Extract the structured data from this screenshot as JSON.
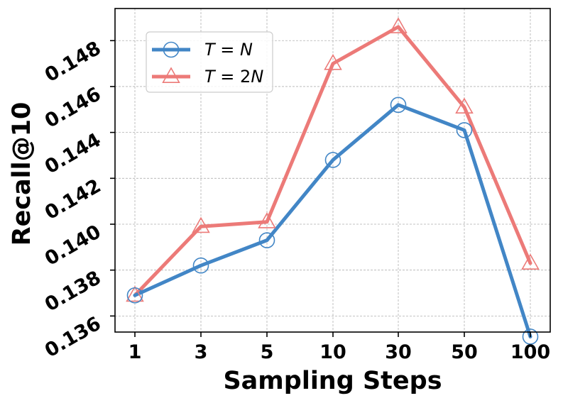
{
  "chart_data": {
    "type": "line",
    "title": "",
    "xlabel": "Sampling Steps",
    "ylabel": "Recall@10",
    "categories": [
      "1",
      "3",
      "5",
      "10",
      "30",
      "50",
      "100"
    ],
    "yticks": [
      "0.136",
      "0.138",
      "0.140",
      "0.142",
      "0.144",
      "0.146",
      "0.148"
    ],
    "ylim": [
      0.1353,
      0.1494
    ],
    "grid": true,
    "legend_position": "top-left",
    "series": [
      {
        "name": "T = N",
        "legend_parts": [
          "T",
          " = ",
          "N"
        ],
        "marker": "circle",
        "color": "#4286c6",
        "values": [
          0.1369,
          0.1382,
          0.1393,
          0.1428,
          0.1452,
          0.1441,
          0.1351
        ]
      },
      {
        "name": "T = 2N",
        "legend_parts": [
          "T",
          " = 2",
          "N"
        ],
        "marker": "triangle",
        "color": "#ec7a78",
        "values": [
          0.1369,
          0.1399,
          0.1401,
          0.147,
          0.1486,
          0.1451,
          0.1383
        ]
      }
    ]
  }
}
